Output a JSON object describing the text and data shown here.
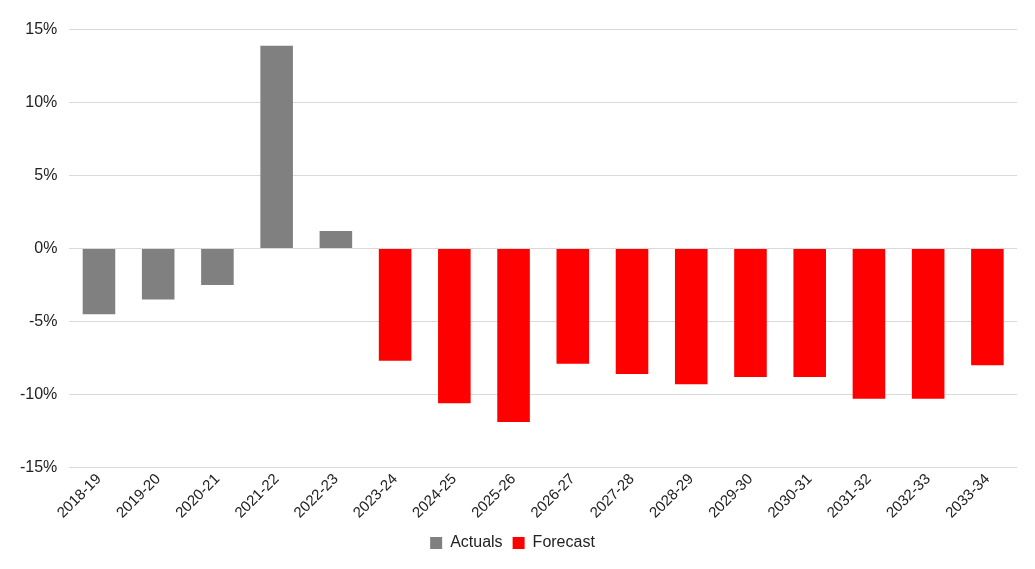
{
  "chart_data": {
    "type": "bar",
    "categories": [
      "2018-19",
      "2019-20",
      "2020-21",
      "2021-22",
      "2022-23",
      "2023-24",
      "2024-25",
      "2025-26",
      "2026-27",
      "2027-28",
      "2028-29",
      "2029-30",
      "2030-31",
      "2031-32",
      "2032-33",
      "2033-34"
    ],
    "series": [
      {
        "name": "Actuals",
        "color": "#808080",
        "values": [
          -4.5,
          -3.5,
          -2.5,
          13.9,
          1.2,
          null,
          null,
          null,
          null,
          null,
          null,
          null,
          null,
          null,
          null,
          null
        ]
      },
      {
        "name": "Forecast",
        "color": "#ff0000",
        "values": [
          null,
          null,
          null,
          null,
          null,
          -7.7,
          -10.6,
          -11.9,
          -7.9,
          -8.6,
          -9.3,
          -8.8,
          -8.8,
          -10.3,
          -10.3,
          -8.0
        ]
      }
    ],
    "ylim": [
      -15,
      15
    ],
    "yticks": [
      {
        "value": -15,
        "label": "-15%"
      },
      {
        "value": -10,
        "label": "-10%"
      },
      {
        "value": -5,
        "label": "-5%"
      },
      {
        "value": 0,
        "label": "0%"
      },
      {
        "value": 5,
        "label": "5%"
      },
      {
        "value": 10,
        "label": "10%"
      },
      {
        "value": 15,
        "label": "15%"
      }
    ],
    "grid": "y",
    "legend": "bottom"
  }
}
